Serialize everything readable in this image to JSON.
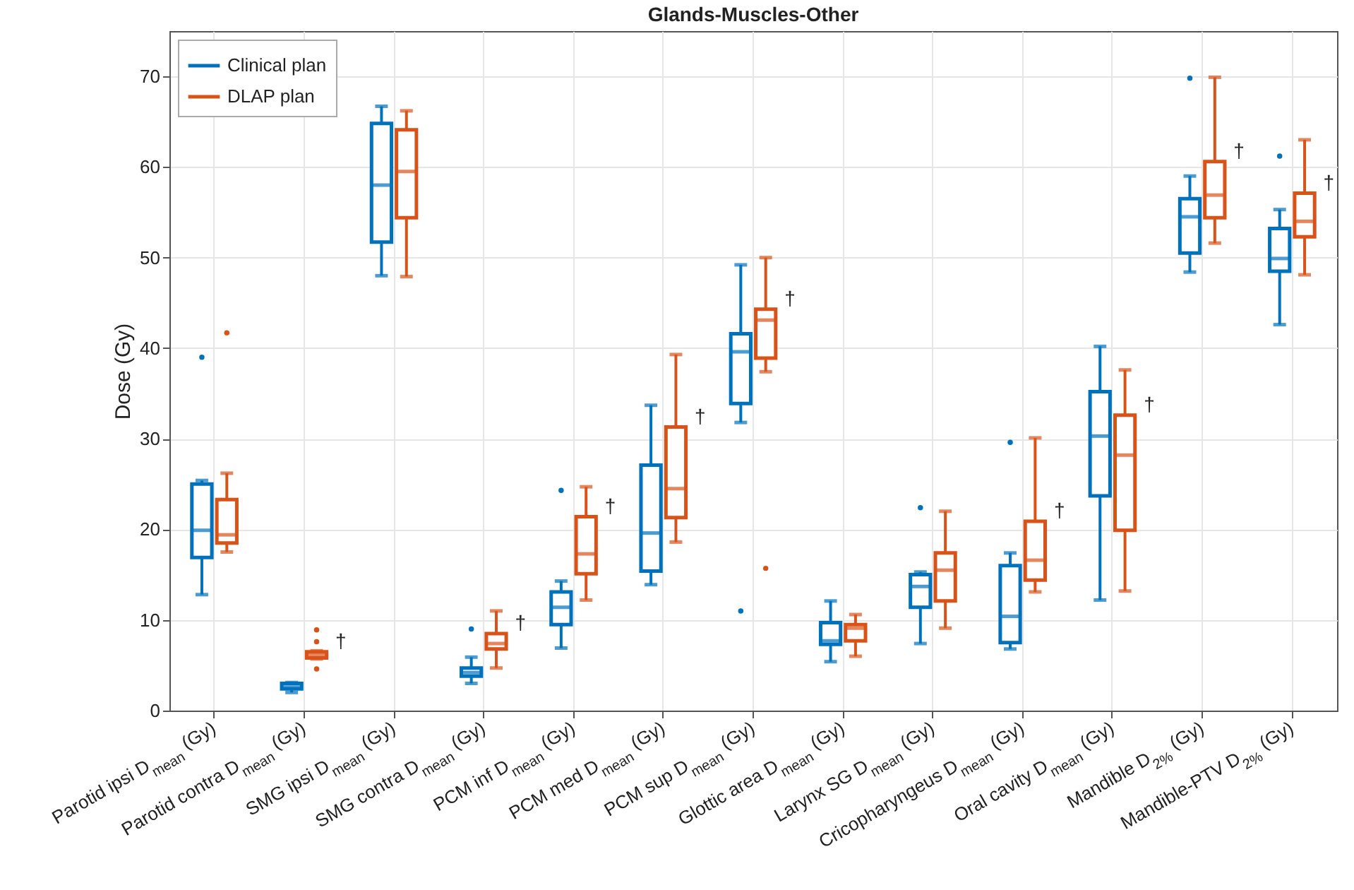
{
  "chart_data": {
    "type": "box",
    "title": "Glands-Muscles-Other",
    "ylabel": "Dose (Gy)",
    "categories": [
      "Parotid ipsi D$_{mean}$ (Gy)",
      "Parotid contra D$_{mean}$ (Gy)",
      "SMG ipsi D$_{mean}$ (Gy)",
      "SMG contra D$_{mean}$ (Gy)",
      "PCM inf D$_{mean}$ (Gy)",
      "PCM med D$_{mean}$ (Gy)",
      "PCM sup D$_{mean}$ (Gy)",
      "Glottic area D$_{mean}$ (Gy)",
      "Larynx SG D$_{mean}$ (Gy)",
      "Cricopharyngeus D$_{mean}$ (Gy)",
      "Oral cavity D$_{mean}$ (Gy)",
      "Mandible D$_{2%}$ (Gy)",
      "Mandible-PTV D$_{2%}$ (Gy)"
    ],
    "series": [
      {
        "name": "Clinical plan",
        "color": "#0072bd",
        "boxes": [
          {
            "low": 12.8,
            "q1": 16.9,
            "median": 19.9,
            "q3": 25.0,
            "high": 25.4,
            "outliers": [
              39.0
            ]
          },
          {
            "low": 2.0,
            "q1": 2.4,
            "median": 2.6,
            "q3": 3.0,
            "high": 3.1
          },
          {
            "low": 48.0,
            "q1": 51.7,
            "median": 58.0,
            "q3": 64.8,
            "high": 66.7
          },
          {
            "low": 3.0,
            "q1": 3.8,
            "median": 4.2,
            "q3": 4.7,
            "high": 5.9,
            "outliers": [
              9.0
            ]
          },
          {
            "low": 6.9,
            "q1": 9.5,
            "median": 11.4,
            "q3": 13.1,
            "high": 14.3,
            "outliers": [
              24.3
            ]
          },
          {
            "low": 13.9,
            "q1": 15.4,
            "median": 19.6,
            "q3": 27.1,
            "high": 33.7
          },
          {
            "low": 31.8,
            "q1": 33.9,
            "median": 39.6,
            "q3": 41.6,
            "high": 49.2,
            "outliers": [
              11.0
            ]
          },
          {
            "low": 5.4,
            "q1": 7.3,
            "median": 7.7,
            "q3": 9.7,
            "high": 12.1
          },
          {
            "low": 7.4,
            "q1": 11.4,
            "median": 13.7,
            "q3": 15.0,
            "high": 15.3,
            "outliers": [
              22.4
            ]
          },
          {
            "low": 6.8,
            "q1": 7.5,
            "median": 10.4,
            "q3": 16.0,
            "high": 17.4,
            "outliers": [
              29.6
            ]
          },
          {
            "low": 12.2,
            "q1": 23.7,
            "median": 30.3,
            "q3": 35.2,
            "high": 40.2
          },
          {
            "low": 48.4,
            "q1": 50.5,
            "median": 54.5,
            "q3": 56.5,
            "high": 59.0,
            "outliers": [
              69.8
            ]
          },
          {
            "low": 42.6,
            "q1": 48.5,
            "median": 49.9,
            "q3": 53.2,
            "high": 55.3,
            "outliers": [
              61.2
            ]
          }
        ]
      },
      {
        "name": "DLAP plan",
        "color": "#d95319",
        "boxes": [
          {
            "low": 17.5,
            "q1": 18.5,
            "median": 19.4,
            "q3": 23.3,
            "high": 26.2,
            "outliers": [
              41.7
            ]
          },
          {
            "low": 5.7,
            "q1": 5.8,
            "median": 6.2,
            "q3": 6.5,
            "high": 6.6,
            "outliers": [
              8.9,
              7.6,
              4.6
            ]
          },
          {
            "low": 47.9,
            "q1": 54.4,
            "median": 59.5,
            "q3": 64.1,
            "high": 66.2
          },
          {
            "low": 4.7,
            "q1": 6.8,
            "median": 7.4,
            "q3": 8.5,
            "high": 11.0
          },
          {
            "low": 12.2,
            "q1": 15.1,
            "median": 17.3,
            "q3": 21.4,
            "high": 24.7
          },
          {
            "low": 18.6,
            "q1": 21.3,
            "median": 24.5,
            "q3": 31.3,
            "high": 39.3
          },
          {
            "low": 37.4,
            "q1": 38.9,
            "median": 43.1,
            "q3": 44.3,
            "high": 50.0,
            "outliers": [
              15.7
            ]
          },
          {
            "low": 6.0,
            "q1": 7.7,
            "median": 9.1,
            "q3": 9.5,
            "high": 10.6
          },
          {
            "low": 9.1,
            "q1": 12.1,
            "median": 15.5,
            "q3": 17.4,
            "high": 22.0
          },
          {
            "low": 13.1,
            "q1": 14.4,
            "median": 16.6,
            "q3": 20.9,
            "high": 30.1
          },
          {
            "low": 13.2,
            "q1": 19.9,
            "median": 28.2,
            "q3": 32.6,
            "high": 37.6
          },
          {
            "low": 51.6,
            "q1": 54.4,
            "median": 56.9,
            "q3": 60.6,
            "high": 69.9
          },
          {
            "low": 48.1,
            "q1": 52.3,
            "median": 54.0,
            "q3": 57.1,
            "high": 63.0
          }
        ]
      }
    ],
    "annotations": [
      {
        "text": "†",
        "x": "Parotid contra D$_{mean}$ (Gy)",
        "y": 6.5
      },
      {
        "text": "†",
        "x": "SMG contra D$_{mean}$ (Gy)",
        "y": 8.5
      },
      {
        "text": "†",
        "x": "PCM inf D$_{mean}$ (Gy)",
        "y": 21.4
      },
      {
        "text": "†",
        "x": "PCM med D$_{mean}$ (Gy)",
        "y": 31.3
      },
      {
        "text": "†",
        "x": "PCM sup D$_{mean}$ (Gy)",
        "y": 44.3
      },
      {
        "text": "†",
        "x": "Cricopharyngeus D$_{mean}$ (Gy)",
        "y": 20.9
      },
      {
        "text": "†",
        "x": "Oral cavity D$_{mean}$ (Gy)",
        "y": 32.6
      },
      {
        "text": "†",
        "x": "Mandible D$_{2%}$ (Gy)",
        "y": 60.6
      },
      {
        "text": "†",
        "x": "Mandible-PTV D$_{2%}$ (Gy)",
        "y": 57.1
      }
    ],
    "ylim": [
      0,
      75
    ],
    "yticks": [
      0,
      10,
      20,
      30,
      40,
      50,
      60,
      70
    ],
    "grid": true,
    "legend": "top left"
  }
}
